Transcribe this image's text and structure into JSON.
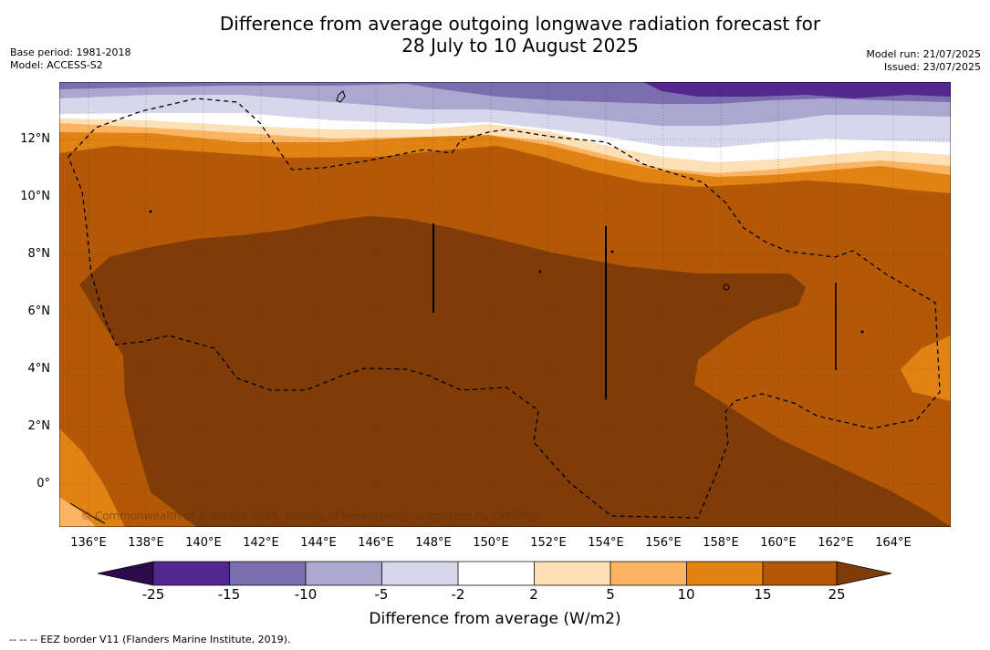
{
  "title_line1": "Difference from average outgoing longwave radiation forecast for",
  "title_line2": "28 July to 10 August 2025",
  "meta_left": {
    "base_period": "Base period: 1981-2018",
    "model": "Model: ACCESS-S2"
  },
  "meta_right": {
    "model_run": "Model run: 21/07/2025",
    "issued": "Issued: 23/07/2025"
  },
  "lat_labels": [
    "12°N",
    "10°N",
    "8°N",
    "6°N",
    "4°N",
    "2°N",
    "0°"
  ],
  "lon_labels": [
    "136°E",
    "138°E",
    "140°E",
    "142°E",
    "144°E",
    "146°E",
    "148°E",
    "150°E",
    "152°E",
    "154°E",
    "156°E",
    "158°E",
    "160°E",
    "162°E",
    "164°E"
  ],
  "colorbar": {
    "ticks": [
      "-25",
      "-15",
      "-10",
      "-5",
      "-2",
      "2",
      "5",
      "10",
      "15",
      "25"
    ],
    "label": "Difference from average (W/m2)",
    "colors": {
      "below_min": "#2d0a4b",
      "c1": "#54278f",
      "c2": "#7b6eae",
      "c3": "#aca7d1",
      "c4": "#d7d6eb",
      "c5": "#ffffff",
      "c6": "#fde0b6",
      "c7": "#fbb462",
      "c8": "#e08214",
      "c9": "#b35806",
      "above_max": "#7f3b08"
    }
  },
  "footnote": "--  --  -- EEZ border V11 (Flanders Marine Institute, 2019).",
  "copyright": "© Commonwealth of Australia 2025, Bureau of Meteorology, supported by COSPPac"
}
